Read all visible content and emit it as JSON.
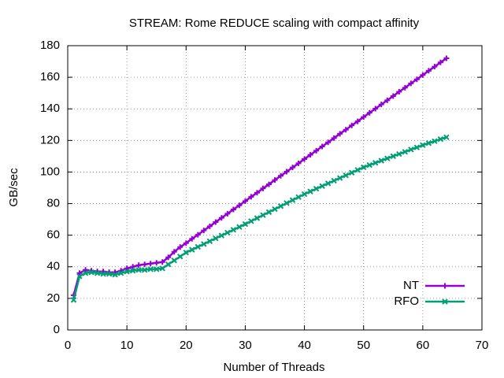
{
  "chart_data": {
    "type": "line",
    "title": "STREAM: Rome REDUCE scaling with compact affinity",
    "x_label": "Number of Threads",
    "y_label": "GB/sec",
    "x": [
      1,
      2,
      3,
      4,
      5,
      6,
      7,
      8,
      9,
      10,
      11,
      12,
      13,
      14,
      15,
      16,
      17,
      18,
      19,
      20,
      21,
      22,
      23,
      24,
      25,
      26,
      27,
      28,
      29,
      30,
      31,
      32,
      33,
      34,
      35,
      36,
      37,
      38,
      39,
      40,
      41,
      42,
      43,
      44,
      45,
      46,
      47,
      48,
      49,
      50,
      51,
      52,
      53,
      54,
      55,
      56,
      57,
      58,
      59,
      60,
      61,
      62,
      63,
      64
    ],
    "series": [
      {
        "name": "NT",
        "color": "#9400d3",
        "marker": "plus",
        "values": [
          22,
          36,
          38,
          37.5,
          37,
          37,
          36.5,
          36.5,
          37.5,
          39,
          40,
          41,
          41.5,
          42,
          42.5,
          43,
          46,
          49.5,
          52.5,
          55,
          57.7,
          60.3,
          63.0,
          65.6,
          68.3,
          71.0,
          73.6,
          76.3,
          78.9,
          81.6,
          84.3,
          86.9,
          89.6,
          92.2,
          94.9,
          97.6,
          100.2,
          102.9,
          105.5,
          108.2,
          110.9,
          113.5,
          116.2,
          118.8,
          121.5,
          124.2,
          126.8,
          129.5,
          132.1,
          134.8,
          137.5,
          140.1,
          142.8,
          145.4,
          148.1,
          150.8,
          153.4,
          156.1,
          158.7,
          161.4,
          164.1,
          166.7,
          169.4,
          172
        ]
      },
      {
        "name": "RFO",
        "color": "#009e73",
        "marker": "cross",
        "values": [
          19,
          34,
          36,
          36.5,
          36,
          35.5,
          35.5,
          35,
          36,
          37,
          37.5,
          38,
          38,
          38.5,
          38.5,
          39,
          41.5,
          44,
          46.5,
          49,
          50.8,
          52.6,
          54.4,
          56.2,
          58.0,
          59.8,
          61.6,
          63.4,
          65.2,
          67.0,
          68.9,
          70.8,
          72.7,
          74.6,
          76.5,
          78.4,
          80.3,
          82.2,
          84.1,
          86.0,
          87.7,
          89.4,
          91.1,
          92.8,
          94.5,
          96.2,
          97.9,
          99.6,
          101.3,
          103.0,
          104.4,
          105.8,
          107.2,
          108.6,
          110.0,
          111.4,
          112.8,
          114.2,
          115.6,
          117.0,
          118.3,
          119.5,
          120.8,
          122
        ]
      }
    ],
    "xlim": [
      0,
      70
    ],
    "xticks": [
      0,
      10,
      20,
      30,
      40,
      50,
      60,
      70
    ],
    "ylim": [
      0,
      180
    ],
    "yticks": [
      0,
      20,
      40,
      60,
      80,
      100,
      120,
      140,
      160,
      180
    ],
    "grid": true,
    "legend": "lower right"
  }
}
